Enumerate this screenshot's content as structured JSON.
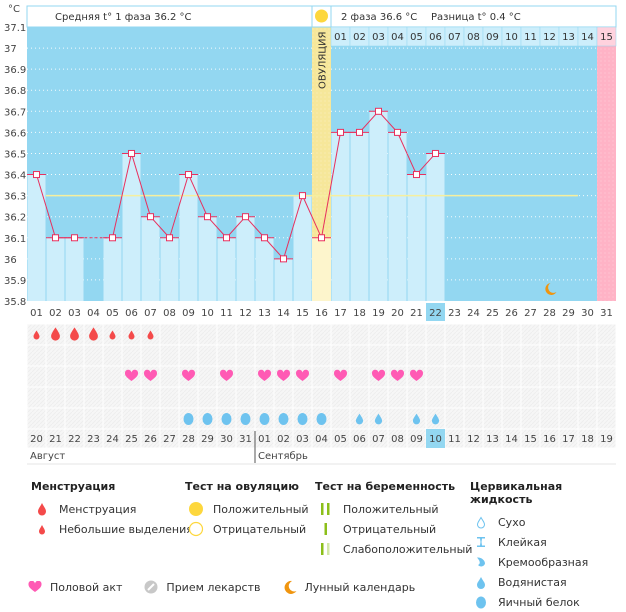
{
  "header": {
    "unit": "°C",
    "phase1_label": "Средняя t° 1 фаза 36.2 °C",
    "phase2_label": "2 фаза 36.6 °C",
    "diff_label": "Разница t° 0.4 °C",
    "ovulation_label": "ОВУЛЯЦИЯ"
  },
  "colors": {
    "background_blue": "#93d7f1",
    "bar_fill": "#cdeefb",
    "ovulation_band": "#f6e79a",
    "ovulation_bar": "#fdf5cc",
    "menstruation_col": "#ffb3c6",
    "line": "#e8305e",
    "coverline": "#f6ef9e",
    "today_highlight": "#93d7f1",
    "heart": "#ff5ab4",
    "drop_red": "#f44a4a",
    "drop_blue": "#6ec3ef",
    "moon": "#f0950f",
    "sun": "#fdd73d"
  },
  "chart_data": {
    "type": "line",
    "title": "",
    "ylabel": "°C",
    "ylim": [
      35.8,
      37.1
    ],
    "yticks": [
      "37.1",
      "37",
      "36.9",
      "36.8",
      "36.7",
      "36.6",
      "36.5",
      "36.4",
      "36.3",
      "36.2",
      "36.1",
      "36",
      "35.9",
      "35.8"
    ],
    "cycle_days": [
      "01",
      "02",
      "03",
      "04",
      "05",
      "06",
      "07",
      "08",
      "09",
      "10",
      "11",
      "12",
      "13",
      "14",
      "15",
      "16",
      "17",
      "18",
      "19",
      "20",
      "21",
      "22",
      "23",
      "24",
      "25",
      "26",
      "27",
      "28",
      "29",
      "30",
      "31"
    ],
    "temperatures": [
      36.4,
      36.1,
      36.1,
      null,
      36.1,
      36.5,
      36.2,
      36.1,
      36.4,
      36.2,
      36.1,
      36.2,
      36.1,
      36.0,
      36.3,
      36.1,
      36.6,
      36.6,
      36.7,
      36.6,
      36.4,
      36.5,
      null,
      null,
      null,
      null,
      null,
      null,
      null,
      null,
      null
    ],
    "missing_interpolated_day": 4,
    "coverline": 36.3,
    "ovulation_day": 16,
    "current_day": 22,
    "phase2_day_numbers": [
      "01",
      "02",
      "03",
      "04",
      "05",
      "06",
      "07",
      "08",
      "09",
      "10",
      "11",
      "12",
      "13",
      "14",
      "15"
    ],
    "expected_menstruation_day": 31,
    "moon_day": 28,
    "calendar_dates": [
      "20",
      "21",
      "22",
      "23",
      "24",
      "25",
      "26",
      "27",
      "28",
      "29",
      "30",
      "31",
      "01",
      "02",
      "03",
      "04",
      "05",
      "06",
      "07",
      "08",
      "09",
      "10",
      "11",
      "12",
      "13",
      "14",
      "15",
      "16",
      "17",
      "18",
      "19"
    ],
    "weekend_dates_idx": [
      3,
      4,
      10,
      11,
      17,
      18,
      24,
      25
    ],
    "today_date_idx": 21,
    "months": [
      {
        "label": "Август",
        "start_idx": 0
      },
      {
        "label": "Сентябрь",
        "start_idx": 12
      }
    ],
    "menstruation": {
      "heavy_days": [
        2,
        3,
        4
      ],
      "light_days": [
        1,
        5,
        6,
        7
      ]
    },
    "intercourse_days": [
      6,
      7,
      9,
      11,
      13,
      14,
      15,
      17,
      19,
      20,
      21
    ],
    "cervical_fluid": {
      "egg_white_days": [
        9,
        10,
        11,
        12,
        13,
        14,
        15,
        16
      ],
      "watery_days": [
        18,
        19,
        21,
        22
      ]
    }
  },
  "legend": {
    "menstruation": {
      "title": "Менструация",
      "items": [
        "Менструация",
        "Небольшие выделения"
      ]
    },
    "ovulation_test": {
      "title": "Тест на овуляцию",
      "items": [
        "Положительный",
        "Отрицательный"
      ]
    },
    "pregnancy_test": {
      "title": "Тест на беременность",
      "items": [
        "Положительный",
        "Отрицательный",
        "Слабоположительный"
      ]
    },
    "cervical_fluid": {
      "title": "Цервикальная жидкость",
      "items": [
        "Сухо",
        "Клейкая",
        "Кремообразная",
        "Водянистая",
        "Яичный белок"
      ]
    },
    "other": [
      "Половой акт",
      "Прием лекарств",
      "Лунный календарь"
    ]
  }
}
